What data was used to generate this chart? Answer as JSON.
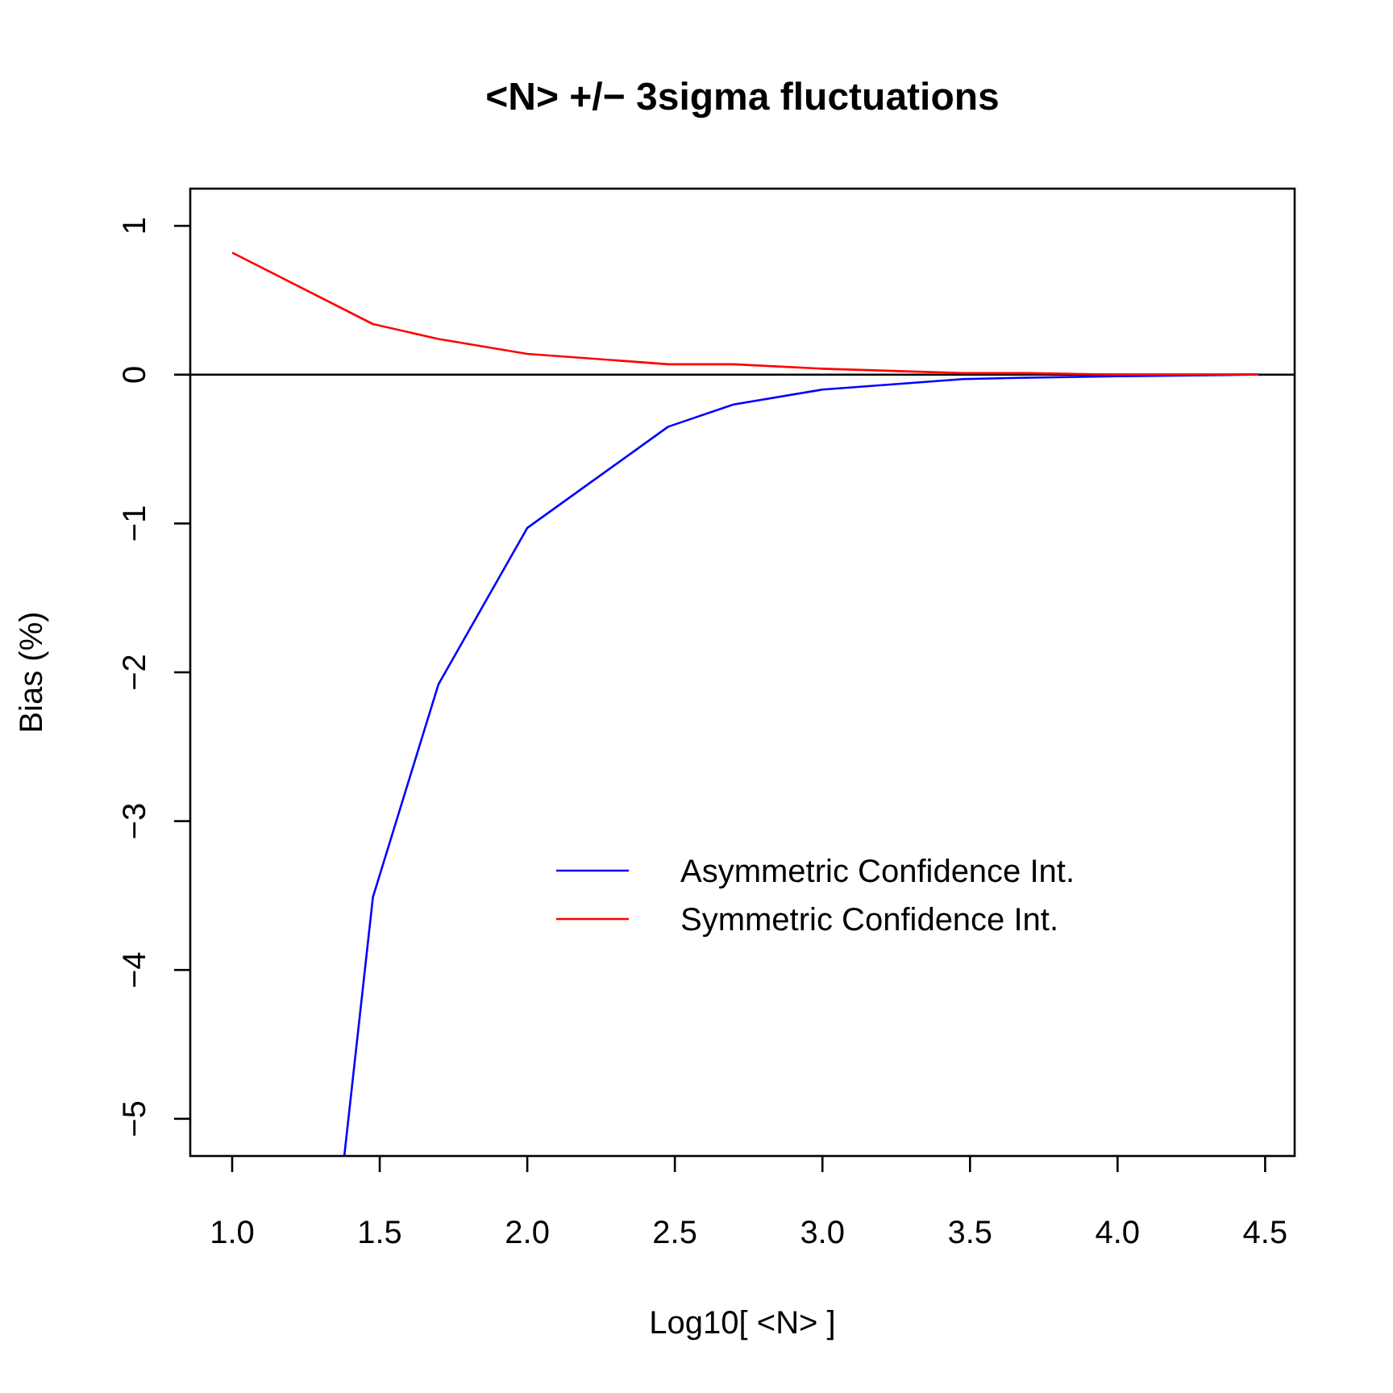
{
  "chart_data": {
    "type": "line",
    "title": "<N> +/− 3sigma fluctuations",
    "xlabel": "Log10[ <N> ]",
    "ylabel": "Bias (%)",
    "xlim": [
      0.858,
      4.6
    ],
    "xticks": [
      {
        "value": 1,
        "label": "1.0"
      },
      {
        "value": 1.5,
        "label": "1.5"
      },
      {
        "value": 2,
        "label": "2.0"
      },
      {
        "value": 2.5,
        "label": "2.5"
      },
      {
        "value": 3,
        "label": "3.0"
      },
      {
        "value": 3.5,
        "label": "3.5"
      },
      {
        "value": 4,
        "label": "4.0"
      },
      {
        "value": 4.5,
        "label": "4.5"
      }
    ],
    "ylim": [
      -5.25,
      1.25
    ],
    "yticks": [
      {
        "value": -5,
        "label": "−5"
      },
      {
        "value": -4,
        "label": "−4"
      },
      {
        "value": -3,
        "label": "−3"
      },
      {
        "value": -2,
        "label": "−2"
      },
      {
        "value": -1,
        "label": "−1"
      },
      0,
      1
    ],
    "series": [
      {
        "name": "Asymmetric Confidence Int.",
        "color": "#0000ff",
        "x": [
          1.38,
          1.477,
          1.699,
          2,
          2.477,
          2.699,
          3,
          3.477,
          3.699,
          4,
          4.477
        ],
        "values": [
          -5.25,
          -3.51,
          -2.08,
          -1.03,
          -0.35,
          -0.2,
          -0.1,
          -0.03,
          -0.02,
          -0.01,
          0
        ]
      },
      {
        "name": "Symmetric Confidence Int.",
        "color": "#ff0000",
        "x": [
          1,
          1.477,
          1.699,
          2,
          2.477,
          2.699,
          3,
          3.477,
          3.699,
          4,
          4.477
        ],
        "values": [
          0.82,
          0.34,
          0.24,
          0.14,
          0.07,
          0.07,
          0.04,
          0.01,
          0.01,
          0,
          0
        ]
      }
    ],
    "ref_lines": [
      {
        "axis": "y",
        "value": 0,
        "color": "#000000"
      }
    ],
    "grid": false,
    "legend": "right",
    "marker": "none",
    "line_style": "solid"
  }
}
